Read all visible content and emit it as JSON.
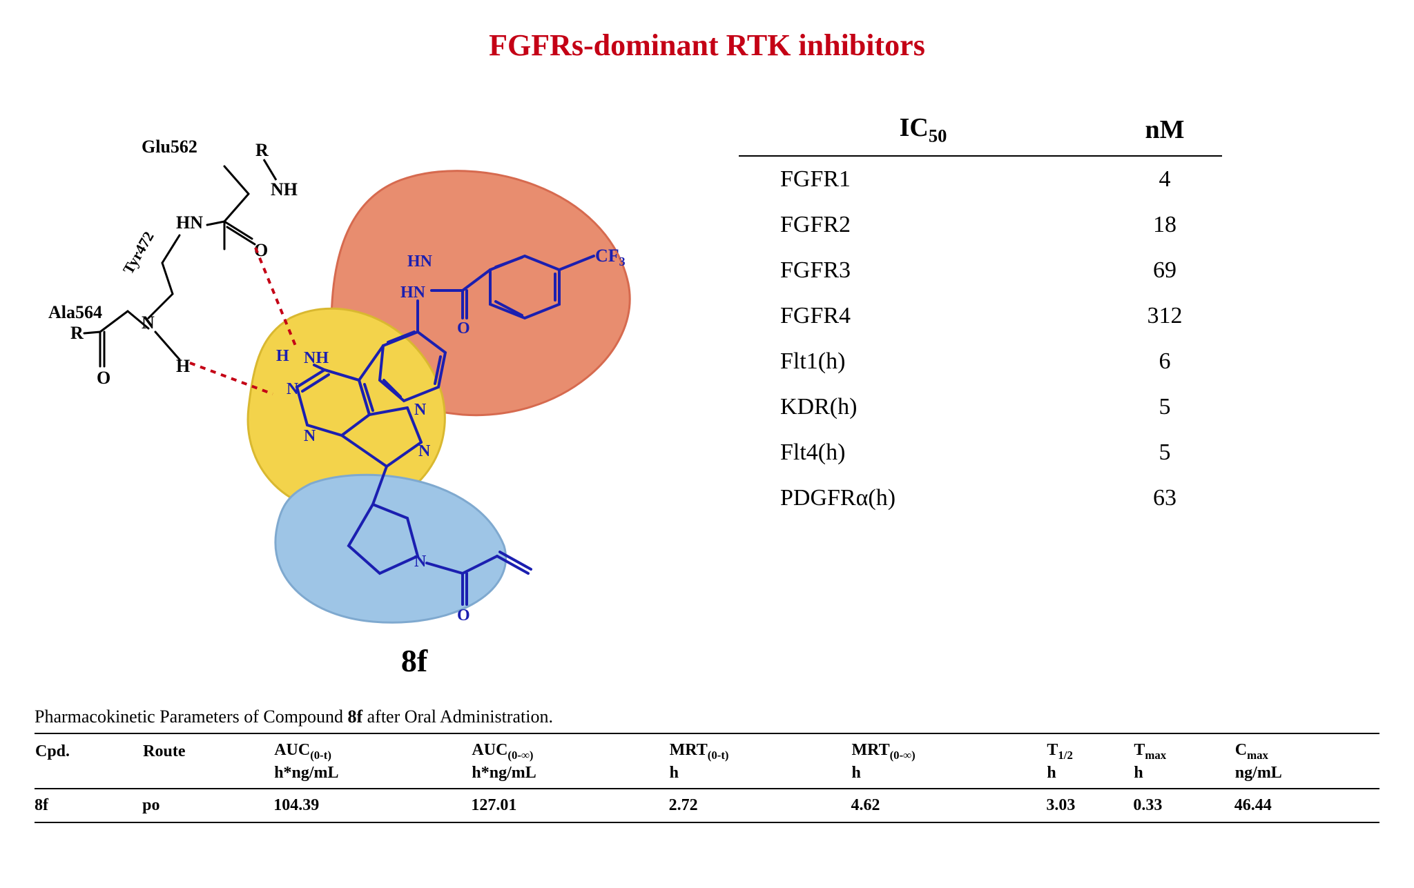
{
  "title": {
    "text": "FGFRs-dominant RTK inhibitors",
    "color": "#c40015",
    "fontsize": 44
  },
  "diagram": {
    "compound_label": "8f",
    "blobs": {
      "top": {
        "fill": "#e88d6f",
        "stroke": "#d66a4f"
      },
      "middle": {
        "fill": "#f3d34b",
        "stroke": "#d9b830"
      },
      "bottom": {
        "fill": "#9ec5e6",
        "stroke": "#7fa9cf"
      }
    },
    "structure_color": "#1b1fb0",
    "peptide_color": "#000000",
    "hbond_color": "#c40015",
    "labels": {
      "glu": "Glu562",
      "tyr": "Tyr472",
      "ala": "Ala564",
      "r1": "R",
      "r2": "R",
      "cf3": "CF₃"
    }
  },
  "ic50_table": {
    "header": {
      "col1": "IC",
      "col1_sub": "50",
      "col2": "nM"
    },
    "rows": [
      {
        "kinase": "FGFR1",
        "value": "4"
      },
      {
        "kinase": "FGFR2",
        "value": "18"
      },
      {
        "kinase": "FGFR3",
        "value": "69"
      },
      {
        "kinase": "FGFR4",
        "value": "312"
      },
      {
        "kinase": "Flt1(h)",
        "value": "6"
      },
      {
        "kinase": "KDR(h)",
        "value": "5"
      },
      {
        "kinase": "Flt4(h)",
        "value": "5"
      },
      {
        "kinase": "PDGFRα(h)",
        "value": "63"
      }
    ]
  },
  "pk": {
    "caption_prefix": "Pharmacokinetic Parameters of Compound ",
    "caption_bold": "8f",
    "caption_suffix": " after Oral Administration.",
    "columns": [
      {
        "line1": "Cpd.",
        "line2": ""
      },
      {
        "line1": "Route",
        "line2": ""
      },
      {
        "line1": "AUC",
        "sub1": "(0-t)",
        "line2": "h*ng/mL"
      },
      {
        "line1": "AUC",
        "sub1": "(0-∞)",
        "line2": "h*ng/mL"
      },
      {
        "line1": "MRT",
        "sub1": "(0-t)",
        "line2": "h"
      },
      {
        "line1": "MRT",
        "sub1": "(0-∞)",
        "line2": "h"
      },
      {
        "line1": "T",
        "sub1": "1/2",
        "line2": "h"
      },
      {
        "line1": "T",
        "sub1": "max",
        "line2": "h"
      },
      {
        "line1": "C",
        "sub1": "max",
        "line2": "ng/mL"
      }
    ],
    "row": [
      "8f",
      "po",
      "104.39",
      "127.01",
      "2.72",
      "4.62",
      "3.03",
      "0.33",
      "46.44"
    ]
  }
}
